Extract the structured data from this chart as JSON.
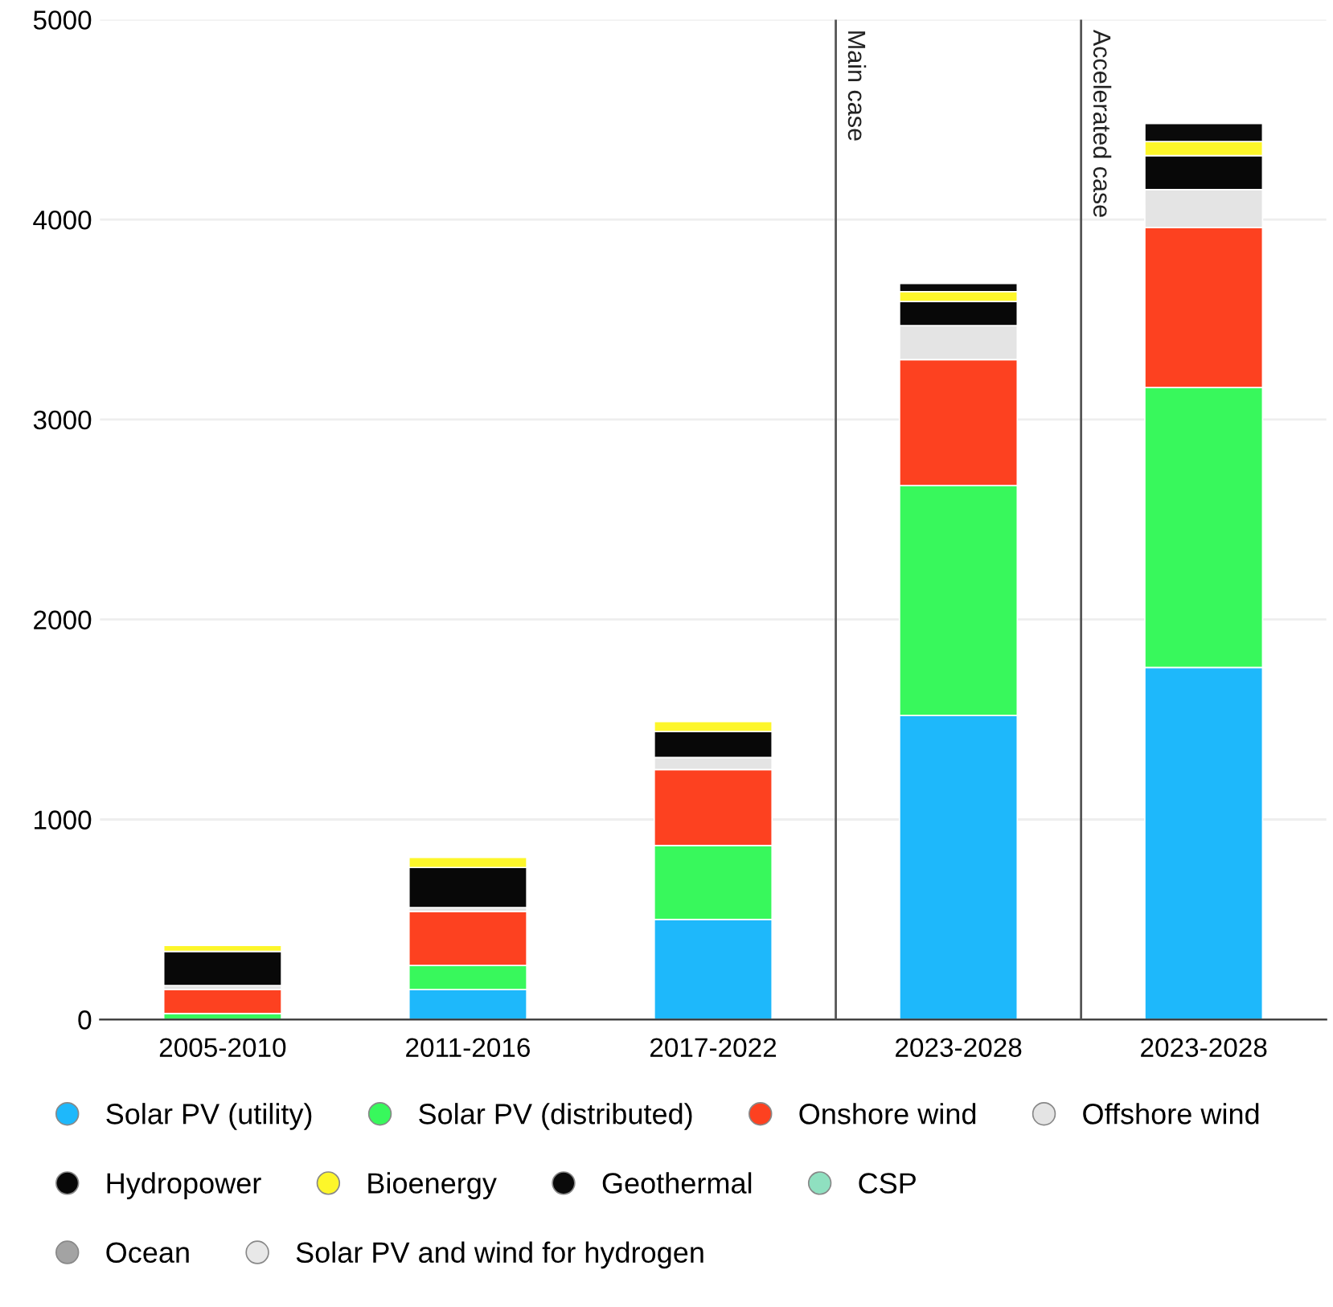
{
  "chart_data": {
    "type": "bar",
    "stacked": true,
    "categories": [
      "2005-2010",
      "2011-2016",
      "2017-2022",
      "2023-2028",
      "2023-2028"
    ],
    "ylim": [
      0,
      5000
    ],
    "yticks": [
      0,
      1000,
      2000,
      3000,
      4000,
      5000
    ],
    "grid": "y",
    "legend": "bottom",
    "marker": "circle",
    "series": [
      {
        "name": "Solar PV (utility)",
        "color": "#1eb8fb",
        "values": [
          0,
          150,
          500,
          1520,
          1760
        ]
      },
      {
        "name": "Solar PV (distributed)",
        "color": "#38f85c",
        "values": [
          30,
          120,
          370,
          1150,
          1400
        ]
      },
      {
        "name": "Onshore wind",
        "color": "#fd4120",
        "values": [
          120,
          270,
          380,
          630,
          800
        ]
      },
      {
        "name": "Offshore wind",
        "color": "#e4e4e4",
        "values": [
          20,
          20,
          60,
          170,
          190
        ]
      },
      {
        "name": "Hydropower",
        "color": "#080808",
        "values": [
          170,
          200,
          130,
          120,
          170
        ]
      },
      {
        "name": "Bioenergy",
        "color": "#fdf62a",
        "values": [
          30,
          50,
          50,
          50,
          70
        ]
      },
      {
        "name": "Geothermal",
        "color": "#0a0a0a",
        "values": [
          null,
          null,
          null,
          40,
          90
        ]
      },
      {
        "name": "CSP",
        "color": "#8fe0c0",
        "values": [
          null,
          null,
          null,
          null,
          null
        ]
      },
      {
        "name": "Ocean",
        "color": "#a3a3a3",
        "values": [
          null,
          null,
          null,
          null,
          null
        ]
      },
      {
        "name": "Solar PV and wind for hydrogen",
        "color": "#e8e8e8",
        "values": [
          null,
          null,
          null,
          null,
          null
        ]
      }
    ],
    "annotations": [
      "Main case",
      "Accelerated case"
    ]
  }
}
